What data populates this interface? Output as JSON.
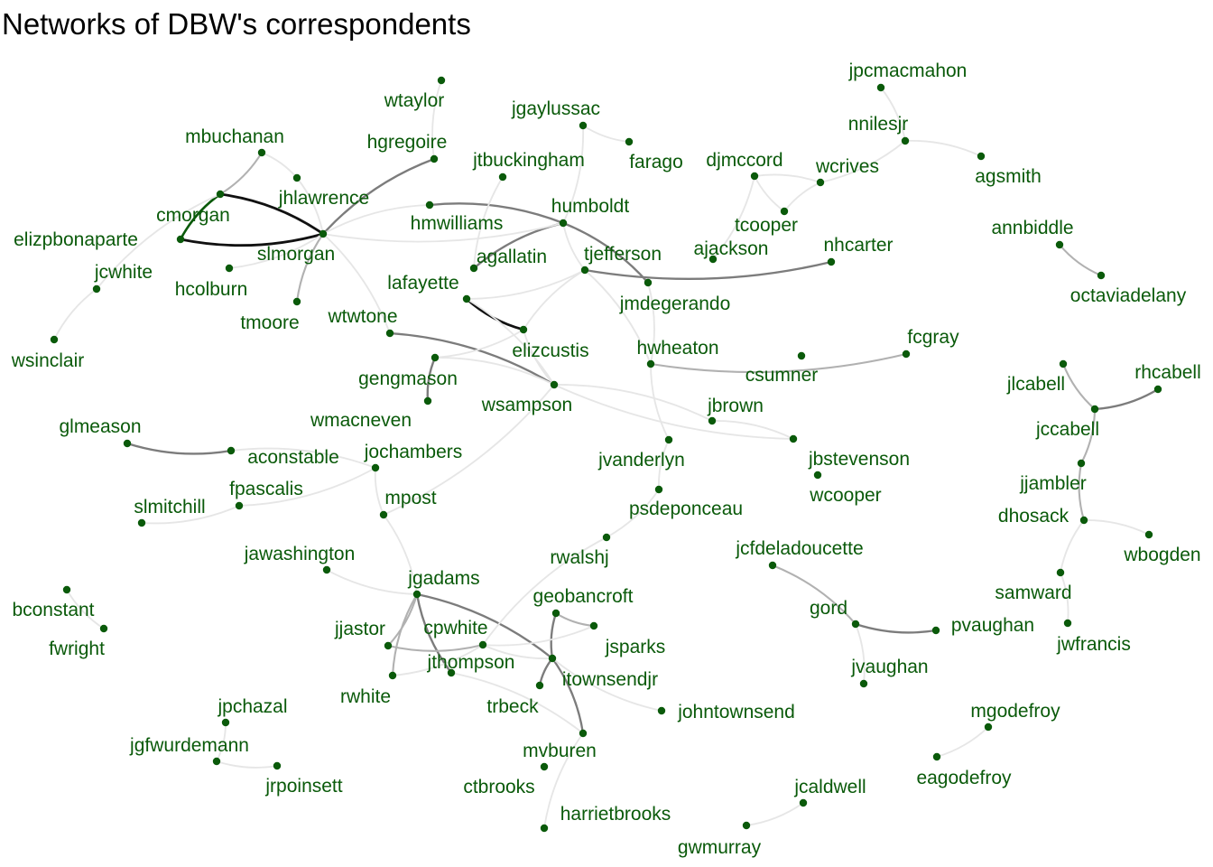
{
  "title": "Networks of DBW's correspondents",
  "colors": {
    "node": "#0a5a0a",
    "label": "#0a5a0a",
    "edge_light": "#e6e6e6",
    "edge_dark": "#111111"
  },
  "nodes": {
    "wtaylor": "wtaylor",
    "jgaylussac": "jgaylussac",
    "farago": "farago",
    "jpcmacmahon": "jpcmacmahon",
    "nnilesjr": "nnilesjr",
    "agsmith": "agsmith",
    "mbuchanan": "mbuchanan",
    "hgregoire": "hgregoire",
    "jtbuckingham": "jtbuckingham",
    "djmccord": "djmccord",
    "wcrives": "wcrives",
    "jhlawrence": "jhlawrence",
    "cmorgan": "cmorgan",
    "elizpbonaparte": "elizpbonaparte",
    "hmwilliams": "hmwilliams",
    "humboldt": "humboldt",
    "tcooper": "tcooper",
    "annbiddle": "annbiddle",
    "slmorgan": "slmorgan",
    "jcwhite": "jcwhite",
    "agallatin": "agallatin",
    "tjefferson": "tjefferson",
    "ajackson": "ajackson",
    "nhcarter": "nhcarter",
    "octaviadelany": "octaviadelany",
    "hcolburn": "hcolburn",
    "lafayette": "lafayette",
    "jmdegerando": "jmdegerando",
    "tmoore": "tmoore",
    "wtwtone": "wtwtone",
    "wsinclair": "wsinclair",
    "elizcustis": "elizcustis",
    "fcgray": "fcgray",
    "hwheaton": "hwheaton",
    "csumner": "csumner",
    "rhcabell": "rhcabell",
    "jlcabell": "jlcabell",
    "gengmason": "gengmason",
    "wsampson": "wsampson",
    "jbrown": "jbrown",
    "wmacneven": "wmacneven",
    "jccabell": "jccabell",
    "glmeason": "glmeason",
    "aconstable": "aconstable",
    "jochambers": "jochambers",
    "jbstevenson": "jbstevenson",
    "jvanderlyn": "jvanderlyn",
    "wcooper": "wcooper",
    "jjambler": "jjambler",
    "fpascalis": "fpascalis",
    "mpost": "mpost",
    "slmitchill": "slmitchill",
    "psdeponceau": "psdeponceau",
    "dhosack": "dhosack",
    "wbogden": "wbogden",
    "jawashington": "jawashington",
    "rwalshj": "rwalshj",
    "jcfdeladoucette": "jcfdeladoucette",
    "jgadams": "jgadams",
    "geobancroft": "geobancroft",
    "samward": "samward",
    "bconstant": "bconstant",
    "gord": "gord",
    "pvaughan": "pvaughan",
    "jjastor": "jjastor",
    "cpwhite": "cpwhite",
    "fwright": "fwright",
    "jsparks": "jsparks",
    "jwfrancis": "jwfrancis",
    "jthompson": "jthompson",
    "jvaughan": "jvaughan",
    "itownsendjr": "itownsendjr",
    "rwhite": "rwhite",
    "trbeck": "trbeck",
    "jpchazal": "jpchazal",
    "johntownsend": "johntownsend",
    "mgodefroy": "mgodefroy",
    "jgfwurdemann": "jgfwurdemann",
    "mvburen": "mvburen",
    "eagodefroy": "eagodefroy",
    "jrpoinsett": "jrpoinsett",
    "ctbrooks": "ctbrooks",
    "jcaldwell": "jcaldwell",
    "harrietbrooks": "harrietbrooks",
    "gwmurray": "gwmurray"
  },
  "edges": [
    [
      "elizpbonaparte",
      "slmorgan",
      5
    ],
    [
      "cmorgan",
      "slmorgan",
      5
    ],
    [
      "lafayette",
      "elizcustis",
      5
    ],
    [
      "elizpbonaparte",
      "cmorgan",
      4
    ],
    [
      "hgregoire",
      "slmorgan",
      3
    ],
    [
      "hmwilliams",
      "humboldt",
      3
    ],
    [
      "humboldt",
      "agallatin",
      3
    ],
    [
      "humboldt",
      "jmdegerando",
      3
    ],
    [
      "tjefferson",
      "nhcarter",
      3
    ],
    [
      "wtwtone",
      "wsampson",
      3
    ],
    [
      "glmeason",
      "aconstable",
      3
    ],
    [
      "wmacneven",
      "gengmason",
      3
    ],
    [
      "gord",
      "pvaughan",
      3
    ],
    [
      "rhcabell",
      "jccabell",
      3
    ],
    [
      "jgadams",
      "jthompson",
      3
    ],
    [
      "jgadams",
      "itownsendjr",
      3
    ],
    [
      "geobancroft",
      "itownsendjr",
      3
    ],
    [
      "itownsendjr",
      "mvburen",
      3
    ],
    [
      "itownsendjr",
      "trbeck",
      3
    ],
    [
      "fcgray",
      "hwheaton",
      2
    ],
    [
      "slmorgan",
      "tmoore",
      2
    ],
    [
      "mbuchanan",
      "cmorgan",
      2
    ],
    [
      "jjastor",
      "jgadams",
      2
    ],
    [
      "rwhite",
      "jgadams",
      2
    ],
    [
      "geobancroft",
      "jsparks",
      2
    ],
    [
      "jcfdeladoucette",
      "gord",
      2
    ],
    [
      "annbiddle",
      "octaviadelany",
      2
    ],
    [
      "jccabell",
      "jjambler",
      2
    ],
    [
      "jjambler",
      "dhosack",
      2
    ],
    [
      "jccabell",
      "jlcabell",
      2
    ],
    [
      "jjastor",
      "cpwhite",
      2
    ],
    [
      "nnilesjr",
      "agsmith",
      1
    ],
    [
      "nnilesjr",
      "jpcmacmahon",
      1
    ],
    [
      "nnilesjr",
      "wcrives",
      1
    ],
    [
      "wcrives",
      "tcooper",
      1
    ],
    [
      "djmccord",
      "wcrives",
      1
    ],
    [
      "djmccord",
      "tcooper",
      1
    ],
    [
      "djmccord",
      "ajackson",
      1
    ],
    [
      "wtaylor",
      "hgregoire",
      1
    ],
    [
      "jgaylussac",
      "humboldt",
      1
    ],
    [
      "jgaylussac",
      "farago",
      1
    ],
    [
      "mbuchanan",
      "jhlawrence",
      1
    ],
    [
      "hcolburn",
      "slmorgan",
      1
    ],
    [
      "jcwhite",
      "cmorgan",
      1
    ],
    [
      "jcwhite",
      "wsinclair",
      1
    ],
    [
      "jhlawrence",
      "slmorgan",
      1
    ],
    [
      "slmorgan",
      "humboldt",
      1
    ],
    [
      "slmorgan",
      "wtwtone",
      1
    ],
    [
      "jtbuckingham",
      "agallatin",
      1
    ],
    [
      "tjefferson",
      "lafayette",
      1
    ],
    [
      "tjefferson",
      "elizcustis",
      1
    ],
    [
      "tjefferson",
      "hwheaton",
      1
    ],
    [
      "humboldt",
      "tjefferson",
      1
    ],
    [
      "jmdegerando",
      "hwheaton",
      1
    ],
    [
      "hwheaton",
      "jvanderlyn",
      1
    ],
    [
      "wsampson",
      "jbrown",
      1
    ],
    [
      "wsampson",
      "gengmason",
      1
    ],
    [
      "wsampson",
      "elizcustis",
      1
    ],
    [
      "wsampson",
      "jbstevenson",
      1
    ],
    [
      "jbrown",
      "jbstevenson",
      1
    ],
    [
      "jochambers",
      "aconstable",
      1
    ],
    [
      "jochambers",
      "fpascalis",
      1
    ],
    [
      "jochambers",
      "mpost",
      1
    ],
    [
      "mpost",
      "jgadams",
      1
    ],
    [
      "jawashington",
      "jgadams",
      1
    ],
    [
      "fpascalis",
      "slmitchill",
      1
    ],
    [
      "jvanderlyn",
      "psdeponceau",
      1
    ],
    [
      "psdeponceau",
      "rwalshj",
      1
    ],
    [
      "rwalshj",
      "cpwhite",
      1
    ],
    [
      "dhosack",
      "wbogden",
      1
    ],
    [
      "dhosack",
      "samward",
      1
    ],
    [
      "samward",
      "jwfrancis",
      1
    ],
    [
      "bconstant",
      "fwright",
      1
    ],
    [
      "gord",
      "jvaughan",
      1
    ],
    [
      "cpwhite",
      "jsparks",
      1
    ],
    [
      "cpwhite",
      "rwhite",
      1
    ],
    [
      "cpwhite",
      "itownsendjr",
      1
    ],
    [
      "jthompson",
      "mvburen",
      1
    ],
    [
      "itownsendjr",
      "johntownsend",
      1
    ],
    [
      "jpchazal",
      "jgfwurdemann",
      1
    ],
    [
      "jgfwurdemann",
      "jrpoinsett",
      1
    ],
    [
      "mgodefroy",
      "eagodefroy",
      1
    ],
    [
      "mvburen",
      "harrietbrooks",
      1
    ],
    [
      "jcaldwell",
      "gwmurray",
      1
    ],
    [
      "hmwilliams",
      "slmorgan",
      1
    ],
    [
      "elizcustis",
      "gengmason",
      1
    ],
    [
      "mpost",
      "wsampson",
      1
    ],
    [
      "lafayette",
      "wsampson",
      1
    ]
  ]
}
